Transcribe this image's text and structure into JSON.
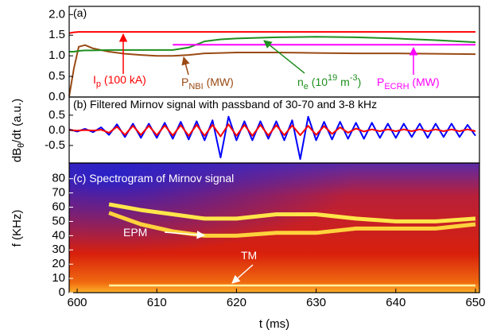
{
  "chart_data": [
    {
      "type": "line",
      "xlim": [
        599,
        650.5
      ],
      "ylim": [
        0,
        2.2
      ],
      "yticks": [
        {
          "value": 0,
          "label": "0.0"
        },
        {
          "value": 0.5,
          "label": "0.5"
        },
        {
          "value": 1,
          "label": "1.0"
        },
        {
          "value": 1.5,
          "label": "1.5"
        },
        {
          "value": 2,
          "label": "2.0"
        }
      ],
      "x": [
        599,
        599.6,
        600.2,
        601,
        602,
        604,
        606,
        608,
        610,
        612,
        614,
        616,
        618,
        620,
        625,
        630,
        635,
        640,
        645,
        650
      ],
      "series": [
        {
          "color": "#ff0000",
          "values": [
            1.55,
            1.57,
            1.58,
            1.58,
            1.58,
            1.58,
            1.58,
            1.58,
            1.58,
            1.58,
            1.58,
            1.58,
            1.58,
            1.58,
            1.58,
            1.58,
            1.58,
            1.58,
            1.58,
            1.58
          ]
        },
        {
          "color": "#9a4a14",
          "values": [
            0.02,
            0.7,
            1.22,
            1.26,
            1.18,
            1.1,
            1.05,
            1.02,
            1.0,
            1.0,
            1.02,
            1.06,
            1.07,
            1.08,
            1.08,
            1.07,
            1.06,
            1.06,
            1.05,
            1.04
          ]
        },
        {
          "color": "#1f8f1f",
          "values": [
            1.1,
            1.1,
            1.12,
            1.13,
            1.13,
            1.14,
            1.14,
            1.14,
            1.14,
            1.14,
            1.2,
            1.35,
            1.4,
            1.42,
            1.45,
            1.46,
            1.45,
            1.42,
            1.38,
            1.33
          ]
        },
        {
          "color": "#ff00ff",
          "values": [
            null,
            null,
            null,
            null,
            null,
            null,
            null,
            null,
            null,
            1.27,
            1.27,
            1.27,
            1.27,
            1.27,
            1.27,
            1.27,
            1.27,
            1.27,
            1.27,
            1.27
          ]
        }
      ],
      "annotations": [
        {
          "color": "#000000",
          "parts": [
            {
              "text": "(a)"
            }
          ]
        },
        {
          "color": "#ff0000",
          "parts": [
            {
              "text": "I"
            },
            {
              "text": "p",
              "shift": "sub"
            },
            {
              "text": " (100 kA)"
            }
          ]
        },
        {
          "color": "#9a4a14",
          "parts": [
            {
              "text": "P"
            },
            {
              "text": "NBI",
              "shift": "sub"
            },
            {
              "text": " (MW)"
            }
          ]
        },
        {
          "color": "#1f8f1f",
          "parts": [
            {
              "text": "n"
            },
            {
              "text": "e",
              "shift": "sub"
            },
            {
              "text": " (10"
            },
            {
              "text": "19",
              "shift": "sup"
            },
            {
              "text": " m"
            },
            {
              "text": "-3",
              "shift": "sup"
            },
            {
              "text": ")"
            }
          ]
        },
        {
          "color": "#ff00ff",
          "parts": [
            {
              "text": "P"
            },
            {
              "text": "ECRH",
              "shift": "sub"
            },
            {
              "text": " (MW)"
            }
          ]
        }
      ]
    },
    {
      "type": "line",
      "xlim": [
        599,
        650.5
      ],
      "ylim": [
        -1.08,
        1.1
      ],
      "yticks": [
        {
          "value": -0.5,
          "label": "-0.5"
        },
        {
          "value": 0,
          "label": "0.0"
        },
        {
          "value": 0.5,
          "label": "0.5"
        }
      ],
      "ylabel": {
        "parts": [
          {
            "text": "dB"
          },
          {
            "text": "θ",
            "shift": "sub"
          },
          {
            "text": "/dt (a.u.)"
          }
        ]
      },
      "x": [
        599,
        600,
        601,
        602,
        603,
        604,
        605,
        606,
        607,
        608,
        609,
        610,
        611,
        612,
        613,
        614,
        615,
        616,
        617,
        618,
        619,
        620,
        621,
        622,
        623,
        624,
        625,
        626,
        627,
        628,
        629,
        630,
        631,
        632,
        633,
        634,
        635,
        636,
        637,
        638,
        639,
        640,
        641,
        642,
        643,
        644,
        645,
        646,
        647,
        648,
        649,
        650
      ],
      "series": [
        {
          "color": "#0000ff",
          "values": [
            0.03,
            -0.04,
            0.05,
            -0.06,
            0.1,
            -0.15,
            0.2,
            -0.22,
            0.22,
            -0.25,
            0.22,
            -0.25,
            0.25,
            -0.28,
            0.28,
            -0.3,
            0.3,
            -0.33,
            0.33,
            -0.9,
            0.45,
            -0.33,
            0.3,
            -0.33,
            0.3,
            -0.28,
            0.3,
            -0.33,
            0.33,
            -0.95,
            0.45,
            -0.33,
            0.28,
            -0.3,
            0.28,
            -0.28,
            0.25,
            -0.28,
            0.25,
            -0.25,
            0.22,
            -0.25,
            0.22,
            -0.22,
            0.22,
            -0.25,
            0.22,
            -0.22,
            0.22,
            -0.22,
            0.18,
            -0.18
          ]
        },
        {
          "color": "#ff0000",
          "values": [
            0.01,
            -0.01,
            0.01,
            -0.01,
            0.02,
            -0.08,
            0.12,
            -0.15,
            0.15,
            -0.15,
            0.15,
            -0.16,
            0.16,
            -0.17,
            0.17,
            -0.18,
            0.18,
            -0.18,
            0.18,
            -0.2,
            0.2,
            -0.18,
            0.18,
            -0.18,
            0.18,
            -0.17,
            0.17,
            -0.16,
            0.16,
            -0.16,
            0.15,
            -0.15,
            0.14,
            -0.12,
            0.1,
            -0.08,
            0.06,
            -0.04,
            0.03,
            -0.03,
            0.03,
            -0.03,
            0.03,
            -0.03,
            0.03,
            -0.03,
            0.03,
            -0.03,
            0.03,
            -0.03,
            0.03,
            -0.03
          ]
        }
      ],
      "annotations": [
        {
          "color": "#000000",
          "parts": [
            {
              "text": "(b) Filtered Mirnov signal with passband of 30-70 and 3-8 kHz"
            }
          ]
        }
      ]
    },
    {
      "type": "spectrogram",
      "xlim": [
        599,
        650.5
      ],
      "ylim": [
        0,
        91
      ],
      "xticks": [
        600,
        610,
        620,
        630,
        640,
        650
      ],
      "yticks": [
        0,
        10,
        20,
        30,
        40,
        50,
        60,
        70,
        80
      ],
      "xlabel": "t (ms)",
      "ylabel": {
        "parts": [
          {
            "text": "f (KHz)"
          }
        ]
      },
      "x": [
        604,
        608,
        612,
        616,
        620,
        625,
        630,
        635,
        640,
        645,
        650
      ],
      "series": [
        {
          "color": "#ffe64a",
          "values": [
            62,
            58,
            55,
            52,
            52,
            55,
            55,
            52,
            50,
            50,
            52
          ]
        },
        {
          "color": "#ffd23c",
          "values": [
            56,
            48,
            43,
            40,
            40,
            42,
            42,
            45,
            45,
            45,
            48
          ]
        },
        {
          "color": "#fff2a0",
          "values": [
            5,
            5,
            5,
            5,
            5,
            5,
            5,
            5,
            5,
            5,
            5
          ]
        }
      ],
      "annotations": [
        {
          "color": "#ffffff",
          "parts": [
            {
              "text": "(c) Spectrogram of Mirnov signal"
            }
          ]
        },
        {
          "color": "#ffffff",
          "parts": [
            {
              "text": "EPM"
            }
          ]
        },
        {
          "color": "#ffffff",
          "parts": [
            {
              "text": "TM"
            }
          ]
        }
      ]
    }
  ]
}
